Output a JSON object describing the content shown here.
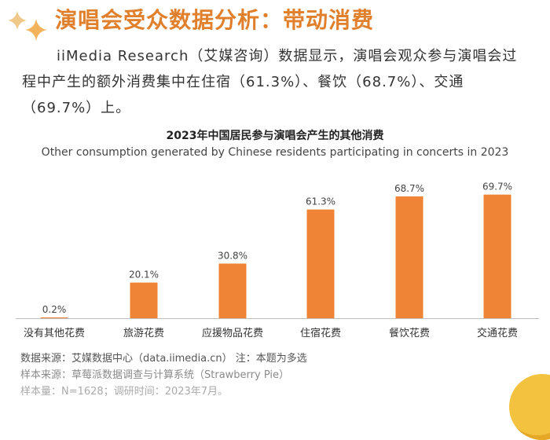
{
  "heading": "演唱会受众数据分析：带动消费",
  "intro": "iiMedia Research（艾媒咨询）数据显示，演唱会观众参与演唱会过程中产生的额外消费集中在住宿（61.3%）、餐饮（68.7%）、交通（69.7%）上。",
  "colors": {
    "accent": "#e1802c",
    "bar": "#ef8336",
    "coin": "#f3c23f"
  },
  "icons": {
    "top_left": "sparkle-icon",
    "bottom_right": "gold-coin-icon"
  },
  "chart_data": {
    "type": "bar",
    "title": "2023年中国居民参与演唱会产生的其他消费",
    "subtitle": "Other consumption generated by Chinese residents participating in concerts in 2023",
    "categories": [
      "没有其他花费",
      "旅游花费",
      "应援物品花费",
      "住宿花费",
      "餐饮花费",
      "交通花费"
    ],
    "values": [
      0.2,
      20.1,
      30.8,
      61.3,
      68.7,
      69.7
    ],
    "value_labels": [
      "0.2%",
      "20.1%",
      "30.8%",
      "61.3%",
      "68.7%",
      "69.7%"
    ],
    "unit": "%",
    "xlabel": "",
    "ylabel": "",
    "ylim": [
      0,
      70
    ],
    "grid": false,
    "legend": false,
    "bar_color": "#ef8336"
  },
  "notes": {
    "data_source": "数据来源：艾媒数据中心（data.iimedia.cn）    注：本题为多选",
    "sample_source": "样本来源：草莓派数据调查与计算系统（Strawberry Pie）",
    "sample_size": "样本量：N=1628；调研时间：2023年7月。"
  }
}
